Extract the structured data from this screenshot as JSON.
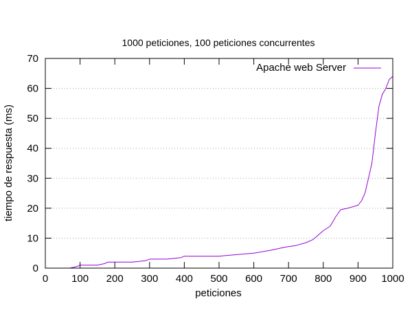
{
  "chart_data": {
    "type": "line",
    "title": "1000 peticiones, 100 peticiones concurrentes",
    "xlabel": "peticiones",
    "ylabel": "tiempo de respuesta (ms)",
    "xlim": [
      0,
      1000
    ],
    "ylim": [
      0,
      70
    ],
    "xticks": [
      0,
      100,
      200,
      300,
      400,
      500,
      600,
      700,
      800,
      900,
      1000
    ],
    "yticks": [
      0,
      10,
      20,
      30,
      40,
      50,
      60,
      70
    ],
    "grid": "horizontal dotted",
    "legend_position": "top-right",
    "colors": {
      "series": "#9400d3",
      "grid": "#a0a0a0",
      "axis": "#000000"
    },
    "series": [
      {
        "name": "Apache web Server",
        "x": [
          70,
          90,
          100,
          150,
          170,
          180,
          200,
          250,
          290,
          300,
          350,
          390,
          400,
          500,
          550,
          600,
          650,
          690,
          720,
          750,
          770,
          780,
          800,
          820,
          835,
          850,
          870,
          900,
          910,
          920,
          930,
          940,
          950,
          960,
          970,
          980,
          990,
          1000
        ],
        "y": [
          0,
          0.5,
          1,
          1,
          1.5,
          2,
          2,
          2,
          2.5,
          3,
          3,
          3.5,
          4,
          4,
          4.5,
          5,
          6,
          7,
          7.5,
          8.5,
          9.5,
          10.5,
          12.5,
          14,
          17,
          19.5,
          20,
          21,
          22.5,
          25,
          30,
          35,
          45,
          54,
          58,
          60,
          63,
          64
        ]
      }
    ]
  }
}
